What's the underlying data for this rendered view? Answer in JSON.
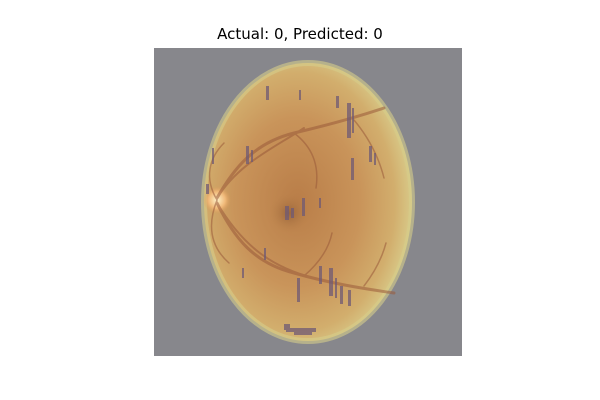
{
  "figure": {
    "title": "Actual: 0, Predicted: 0"
  },
  "image": {
    "subject": "retinal fundus photograph",
    "background_color": "#87878c",
    "fundus_color": "#c9945a",
    "rim_color": "#d4c57e",
    "vessel_color": "#9a5a3a",
    "artifact_color": "#6f5a75"
  }
}
